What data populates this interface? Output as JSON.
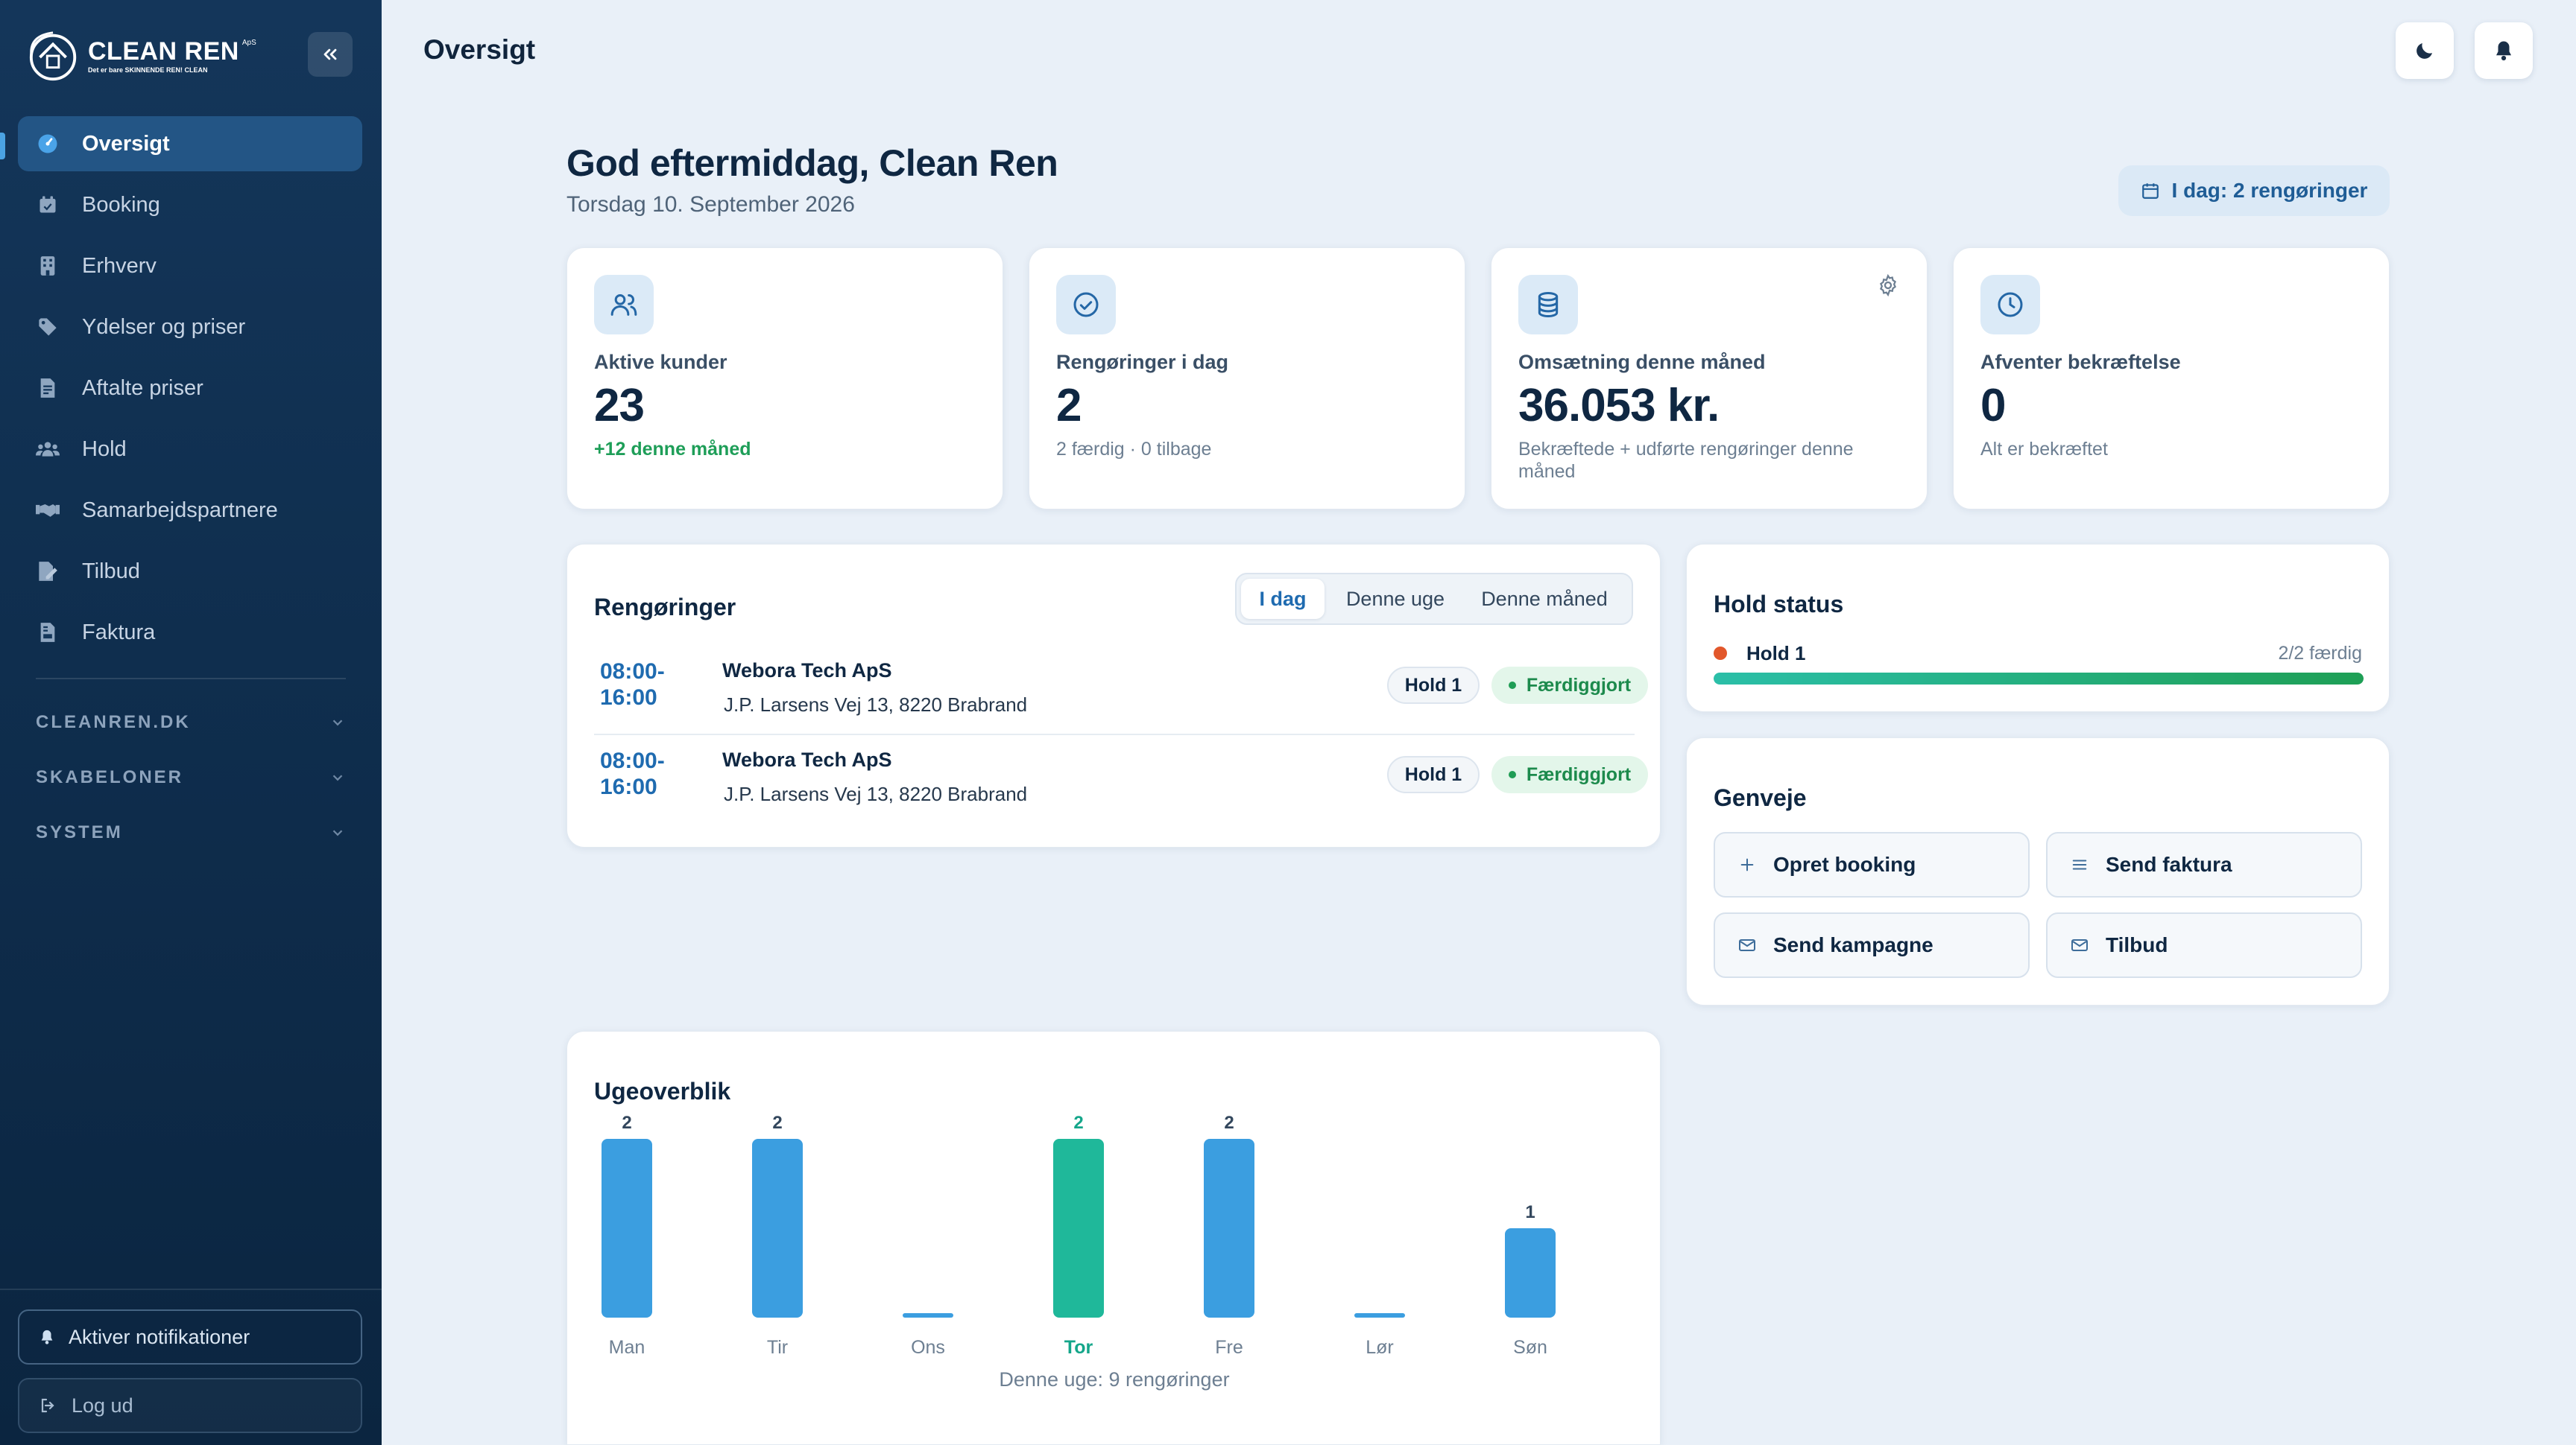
{
  "sidebar": {
    "logo": {
      "brand": "CLEAN REN",
      "suffix": "ApS",
      "tagline": "Det er bare SKINNENDE REN! CLEAN"
    },
    "items": [
      {
        "label": "Oversigt",
        "icon": "dashboard-gauge-icon",
        "active": true
      },
      {
        "label": "Booking",
        "icon": "calendar-check-icon"
      },
      {
        "label": "Erhverv",
        "icon": "building-icon"
      },
      {
        "label": "Ydelser og priser",
        "icon": "tag-icon"
      },
      {
        "label": "Aftalte priser",
        "icon": "file-invoice-icon"
      },
      {
        "label": "Hold",
        "icon": "users-group-icon"
      },
      {
        "label": "Samarbejdspartnere",
        "icon": "handshake-icon"
      },
      {
        "label": "Tilbud",
        "icon": "file-signature-icon"
      },
      {
        "label": "Faktura",
        "icon": "file-invoice-dollar-icon"
      }
    ],
    "sections": [
      {
        "label": "CLEANREN.DK"
      },
      {
        "label": "SKABELONER"
      },
      {
        "label": "SYSTEM"
      }
    ],
    "notify_label": "Aktiver notifikationer",
    "logout_label": "Log ud"
  },
  "header": {
    "title": "Oversigt"
  },
  "greeting": {
    "title": "God eftermiddag, Clean Ren",
    "date": "Torsdag 10. September 2026",
    "today_pill": "I dag: 2 rengøringer"
  },
  "stats": [
    {
      "label": "Aktive kunder",
      "value": "23",
      "sub": "+12 denne måned",
      "icon": "users-icon"
    },
    {
      "label": "Rengøringer i dag",
      "value": "2",
      "sub": "2 færdig · 0 tilbage",
      "icon": "check-circle-icon"
    },
    {
      "label": "Omsætning denne måned",
      "value": "36.053 kr.",
      "sub": "Bekræftede + udførte rengøringer denne måned",
      "icon": "database-icon"
    },
    {
      "label": "Afventer bekræftelse",
      "value": "0",
      "sub": "Alt er bekræftet",
      "icon": "clock-icon"
    }
  ],
  "cleanings": {
    "title": "Rengøringer",
    "tabs": [
      "I dag",
      "Denne uge",
      "Denne måned"
    ],
    "active_tab": "I dag",
    "rows": [
      {
        "time_start": "08:00-",
        "time_end": "16:00",
        "company": "Webora Tech ApS",
        "address": "J.P. Larsens Vej 13, 8220 Brabrand",
        "team": "Hold 1",
        "status": "Færdiggjort"
      },
      {
        "time_start": "08:00-",
        "time_end": "16:00",
        "company": "Webora Tech ApS",
        "address": "J.P. Larsens Vej 13, 8220 Brabrand",
        "team": "Hold 1",
        "status": "Færdiggjort"
      }
    ]
  },
  "hold_status": {
    "title": "Hold status",
    "teams": [
      {
        "name": "Hold 1",
        "count": "2/2 færdig",
        "progress": 1.0,
        "color": "#e2572b"
      }
    ]
  },
  "shortcuts": {
    "title": "Genveje",
    "items": [
      {
        "label": "Opret booking",
        "icon": "plus-icon"
      },
      {
        "label": "Send faktura",
        "icon": "list-lines-icon"
      },
      {
        "label": "Send kampagne",
        "icon": "mail-icon"
      },
      {
        "label": "Tilbud",
        "icon": "mail-icon"
      }
    ]
  },
  "week": {
    "title": "Ugeoverblik",
    "footer": "Denne uge: 9 rengøringer"
  },
  "chart_data": {
    "type": "bar",
    "title": "Ugeoverblik",
    "categories": [
      "Man",
      "Tir",
      "Ons",
      "Tor",
      "Fre",
      "Lør",
      "Søn"
    ],
    "values": [
      2,
      2,
      0,
      2,
      2,
      0,
      1
    ],
    "highlight": "Tor",
    "colors": {
      "default": "#3b9ee0",
      "highlight": "#1fb89a"
    },
    "ylim": [
      0,
      2
    ],
    "grid": false,
    "legend": "none"
  },
  "colors": {
    "accent": "#1f6bb0",
    "sidebar": "#0f2e4e",
    "success": "#1e9e58",
    "page_bg": "#e9f0f8"
  }
}
